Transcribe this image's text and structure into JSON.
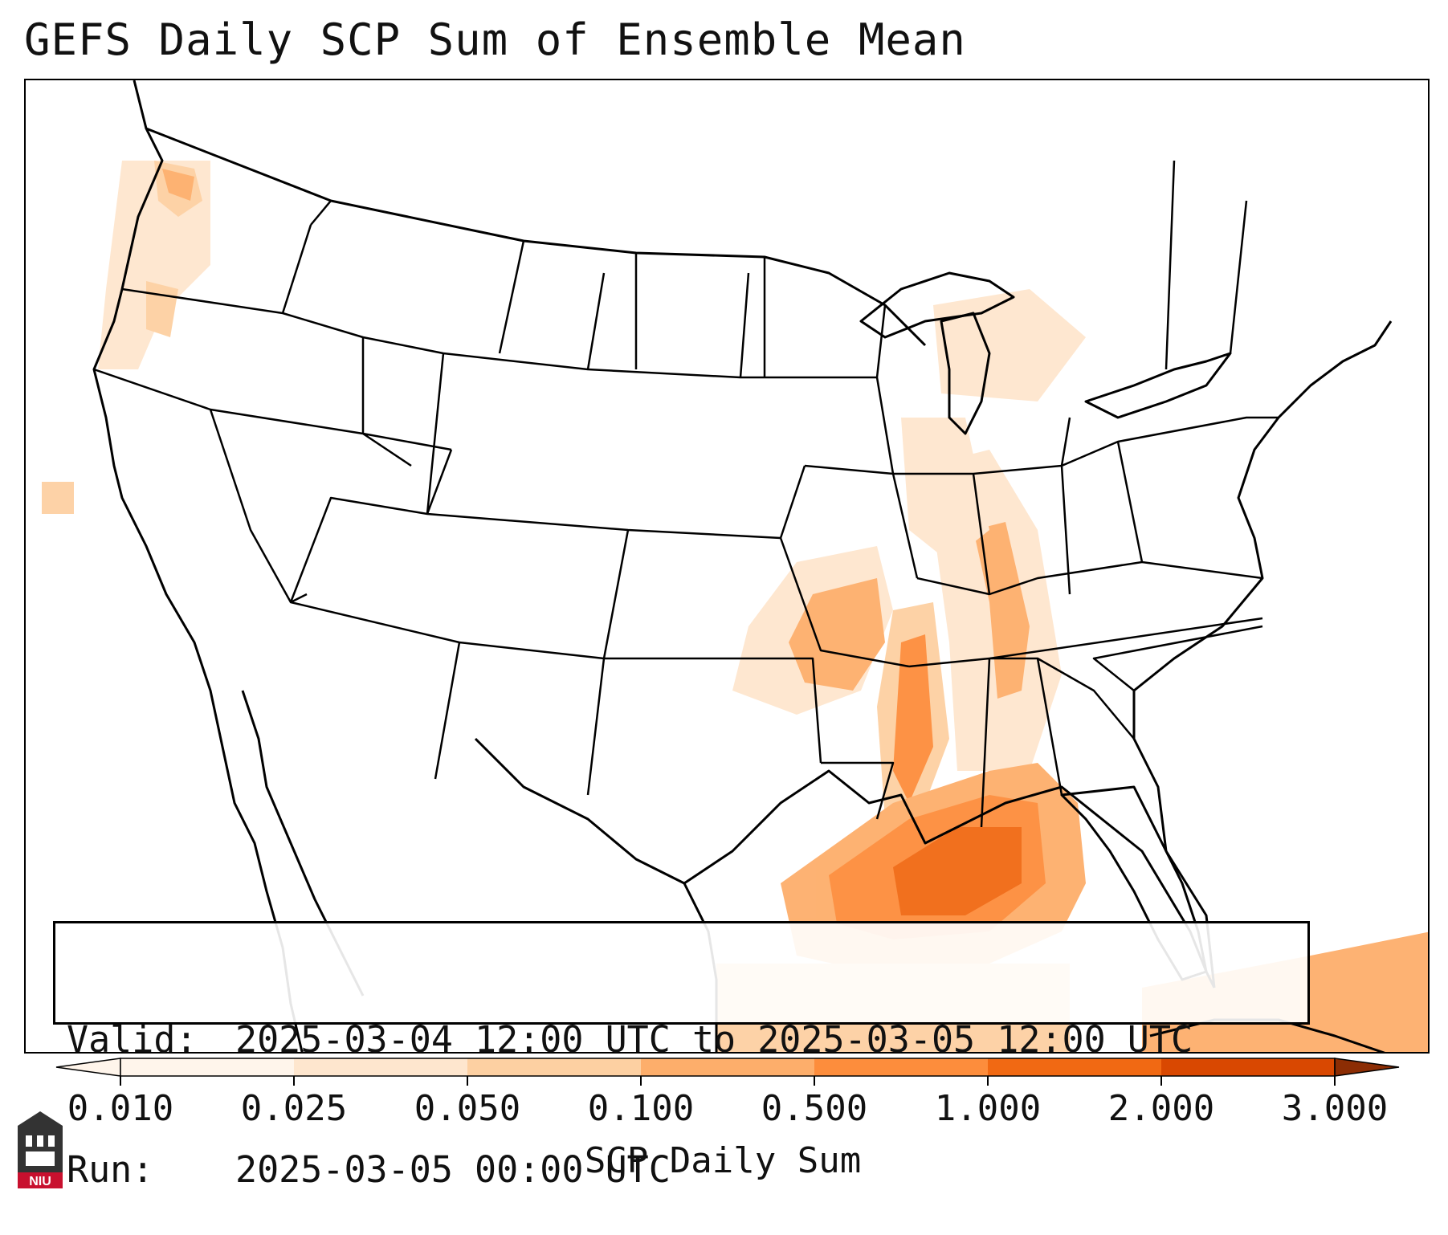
{
  "title": "GEFS Daily SCP Sum of Ensemble Mean",
  "info_box": {
    "valid_label": "Valid:",
    "valid_value": "2025-03-04 12:00 UTC to 2025-03-05 12:00 UTC",
    "run_label": "Run:",
    "run_value": "2025-03-05 00:00 UTC"
  },
  "colorbar": {
    "title": "SCP Daily Sum",
    "ticks": [
      "0.010",
      "0.025",
      "0.050",
      "0.100",
      "0.500",
      "1.000",
      "2.000",
      "3.000"
    ],
    "colors": [
      "#fff5eb",
      "#fee6ce",
      "#fdd0a2",
      "#fdae6b",
      "#fd8d3c",
      "#f16913",
      "#d94801",
      "#8c2d04"
    ],
    "extend": "both"
  },
  "logo": {
    "text": "NIU",
    "color": "#c8102e"
  }
}
